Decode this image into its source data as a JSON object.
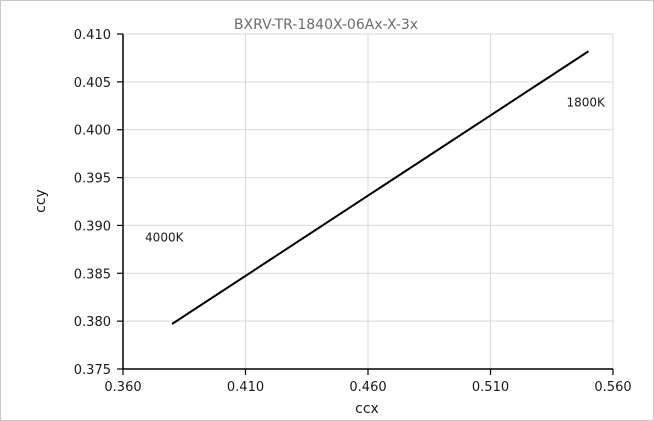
{
  "chart_data": {
    "type": "line",
    "title": "BXRV-TR-1840X-06Ax-X-3x",
    "xlabel": "ccx",
    "ylabel": "ccy",
    "xlim": [
      0.36,
      0.56
    ],
    "ylim": [
      0.375,
      0.41
    ],
    "x_ticks": [
      "0.360",
      "0.410",
      "0.460",
      "0.510",
      "0.560"
    ],
    "y_ticks": [
      "0.375",
      "0.380",
      "0.385",
      "0.390",
      "0.395",
      "0.400",
      "0.405",
      "0.410"
    ],
    "grid": true,
    "series": [
      {
        "color": "#000000",
        "x": [
          0.38,
          0.55
        ],
        "y": [
          0.3797,
          0.4082
        ]
      }
    ],
    "annotations": [
      {
        "text": "1800K",
        "x": 0.541,
        "y": 0.4024
      },
      {
        "text": "4000K",
        "x": 0.369,
        "y": 0.3883
      }
    ]
  }
}
